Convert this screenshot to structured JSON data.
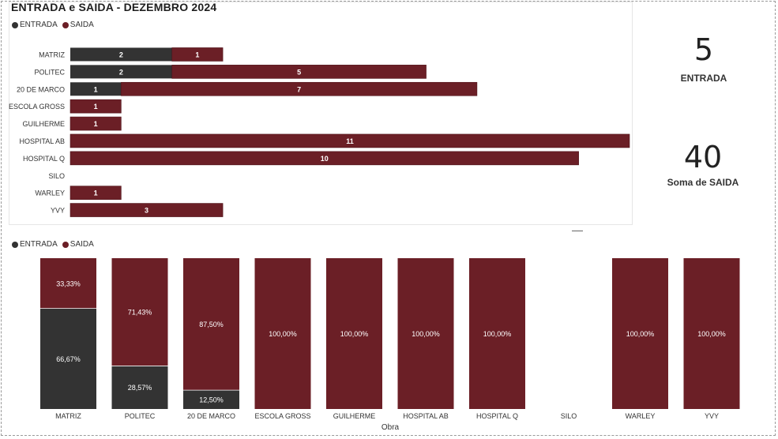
{
  "colors": {
    "entrada": "#333333",
    "saida": "#6b1f26"
  },
  "top_chart_title": "ENTRADA e SAIDA - DEZEMBRO 2024",
  "legend": {
    "entrada": "ENTRADA",
    "saida": "SAIDA"
  },
  "kpis": {
    "entrada": {
      "value": "5",
      "label": "ENTRADA"
    },
    "saida": {
      "value": "40",
      "label": "Soma de SAIDA"
    }
  },
  "chart_data": [
    {
      "type": "bar",
      "orientation": "horizontal",
      "stacked": true,
      "title": "ENTRADA e SAIDA - DEZEMBRO 2024",
      "categories": [
        "MATRIZ",
        "POLITEC",
        "20 DE MARCO",
        "ESCOLA GROSS",
        "GUILHERME",
        "HOSPITAL AB",
        "HOSPITAL Q",
        "SILO",
        "WARLEY",
        "YVY"
      ],
      "series": [
        {
          "name": "ENTRADA",
          "values": [
            2,
            2,
            1,
            0,
            0,
            0,
            0,
            0,
            0,
            0
          ]
        },
        {
          "name": "SAIDA",
          "values": [
            1,
            5,
            7,
            1,
            1,
            11,
            10,
            0,
            1,
            3
          ]
        }
      ],
      "legend": "top-left",
      "grid": false
    },
    {
      "type": "bar",
      "stacked": true,
      "percent": true,
      "xlabel": "Obra",
      "categories": [
        "MATRIZ",
        "POLITEC",
        "20 DE MARCO",
        "ESCOLA GROSS",
        "GUILHERME",
        "HOSPITAL AB",
        "HOSPITAL Q",
        "SILO",
        "WARLEY",
        "YVY"
      ],
      "series": [
        {
          "name": "ENTRADA",
          "values": [
            66.67,
            28.57,
            12.5,
            0,
            0,
            0,
            0,
            0,
            0,
            0
          ]
        },
        {
          "name": "SAIDA",
          "values": [
            33.33,
            71.43,
            87.5,
            100,
            100,
            100,
            100,
            0,
            100,
            100
          ]
        }
      ],
      "data_labels": {
        "entrada": [
          "66,67%",
          "28,57%",
          "12,50%",
          "",
          "",
          "",
          "",
          "",
          "",
          ""
        ],
        "saida": [
          "33,33%",
          "71,43%",
          "87,50%",
          "100,00%",
          "100,00%",
          "100,00%",
          "100,00%",
          "",
          "100,00%",
          "100,00%"
        ]
      },
      "legend": "top-left",
      "grid": false
    }
  ]
}
